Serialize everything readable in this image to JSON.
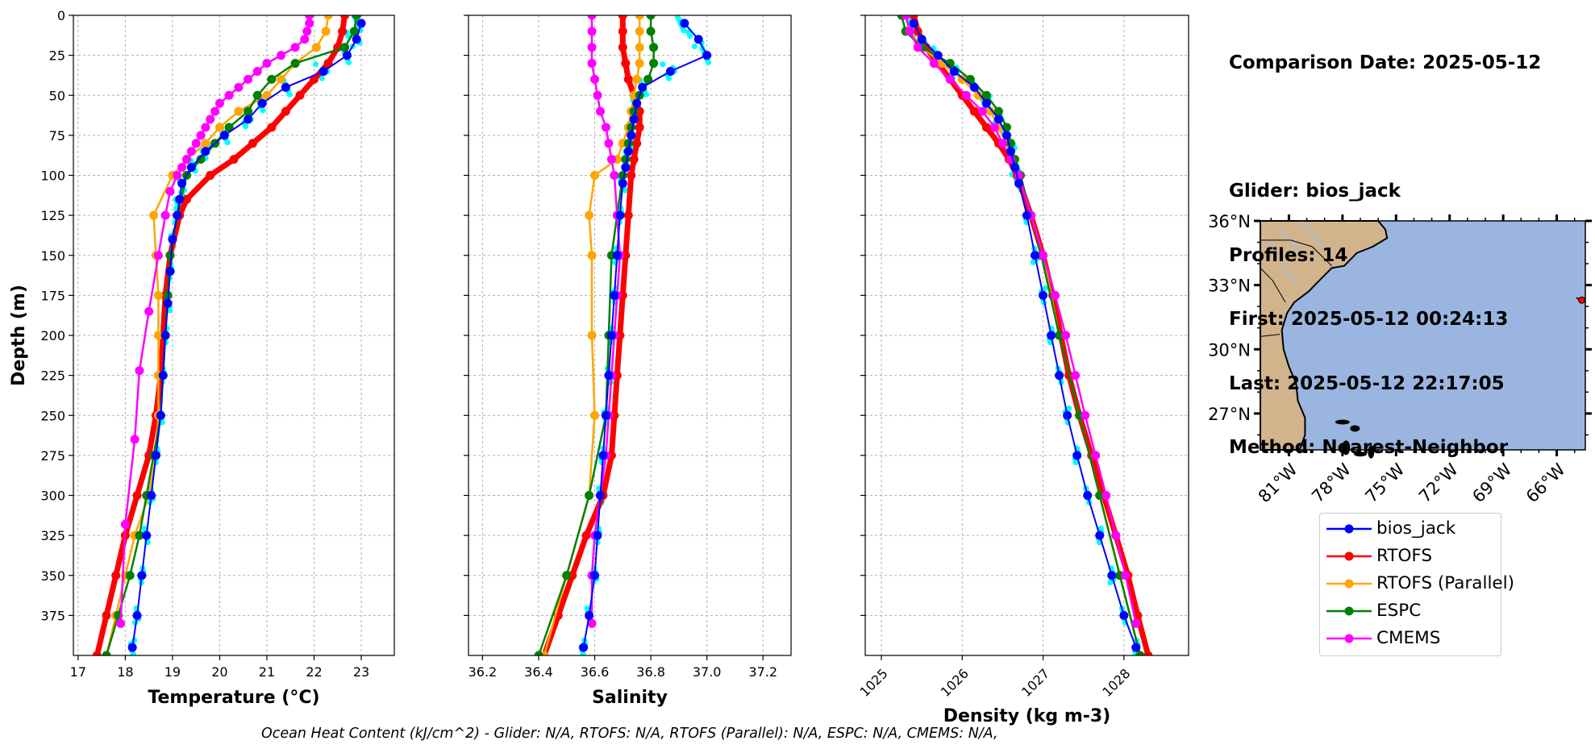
{
  "info": {
    "comparison_date": "Comparison Date: 2025-05-12",
    "glider": "Glider: bios_jack",
    "profiles": "Profiles: 14",
    "first": "First: 2025-05-12 00:24:13",
    "last": "Last: 2025-05-12 22:17:05",
    "method": "Method: Nearest-Neighbor"
  },
  "footer": "Ocean Heat Content (kJ/cm^2) - Glider: N/A,  RTOFS: N/A,  RTOFS (Parallel): N/A,  ESPC: N/A,  CMEMS: N/A,",
  "legend": [
    {
      "label": "bios_jack",
      "color": "#0000ff"
    },
    {
      "label": "RTOFS",
      "color": "#ff0000"
    },
    {
      "label": "RTOFS (Parallel)",
      "color": "#ffa500"
    },
    {
      "label": "ESPC",
      "color": "#008000"
    },
    {
      "label": "CMEMS",
      "color": "#ff00ff"
    }
  ],
  "colors": {
    "glider": "#0000ff",
    "glider_raw": "#00ffff",
    "rtofs": "#ff0000",
    "rtofs_parallel": "#ffa500",
    "espc": "#008000",
    "cmems": "#ff00ff",
    "ocean": "#9ab6e0",
    "land": "#d2b48c",
    "grid": "#b0b0b0"
  },
  "map": {
    "lat_ticks": [
      "36°N",
      "33°N",
      "30°N",
      "27°N"
    ],
    "lon_ticks": [
      "81°W",
      "78°W",
      "75°W",
      "72°W",
      "69°W",
      "66°W"
    ]
  },
  "chart_data": [
    {
      "type": "line",
      "panel": "temperature",
      "xlabel": "Temperature (°C)",
      "ylabel": "Depth (m)",
      "xlim": [
        16.9,
        23.7
      ],
      "ylim": [
        400,
        0
      ],
      "xticks": [
        17,
        18,
        19,
        20,
        21,
        22,
        23
      ],
      "yticks": [
        0,
        25,
        50,
        75,
        100,
        125,
        150,
        175,
        200,
        225,
        250,
        275,
        300,
        325,
        350,
        375
      ],
      "grid": true,
      "series": [
        {
          "name": "bios_jack",
          "depth": [
            5,
            15,
            25,
            35,
            45,
            55,
            65,
            75,
            85,
            95,
            105,
            115,
            125,
            140,
            160,
            180,
            200,
            225,
            250,
            275,
            300,
            325,
            350,
            375,
            395
          ],
          "values": [
            23.0,
            22.9,
            22.7,
            22.2,
            21.4,
            20.9,
            20.6,
            20.1,
            19.7,
            19.4,
            19.2,
            19.15,
            19.1,
            19.0,
            18.95,
            18.9,
            18.85,
            18.8,
            18.75,
            18.65,
            18.55,
            18.45,
            18.35,
            18.25,
            18.15
          ]
        },
        {
          "name": "RTOFS",
          "depth": [
            0,
            10,
            20,
            30,
            40,
            50,
            60,
            70,
            80,
            90,
            100,
            115,
            125,
            150,
            175,
            200,
            225,
            250,
            275,
            300,
            325,
            350,
            375,
            400
          ],
          "values": [
            22.65,
            22.6,
            22.5,
            22.3,
            22.0,
            21.7,
            21.4,
            21.1,
            20.7,
            20.3,
            19.8,
            19.3,
            19.15,
            18.95,
            18.85,
            18.8,
            18.75,
            18.65,
            18.5,
            18.25,
            18.0,
            17.8,
            17.6,
            17.4
          ]
        },
        {
          "name": "RTOFS (Parallel)",
          "depth": [
            0,
            10,
            20,
            30,
            40,
            50,
            60,
            70,
            80,
            90,
            100,
            125,
            150,
            175,
            200,
            225,
            250,
            275,
            300,
            325,
            350,
            375,
            400
          ],
          "values": [
            22.3,
            22.25,
            22.05,
            21.6,
            21.3,
            21.0,
            20.4,
            20.0,
            19.7,
            19.3,
            19.0,
            18.6,
            18.65,
            18.7,
            18.7,
            18.7,
            18.7,
            18.65,
            18.5,
            18.2,
            18.0,
            17.8,
            17.6
          ]
        },
        {
          "name": "ESPC",
          "depth": [
            0,
            10,
            20,
            30,
            40,
            50,
            60,
            70,
            80,
            90,
            100,
            125,
            150,
            175,
            200,
            225,
            250,
            275,
            300,
            325,
            350,
            375,
            400
          ],
          "values": [
            22.9,
            22.85,
            22.65,
            21.6,
            21.1,
            20.8,
            20.6,
            20.2,
            19.9,
            19.6,
            19.3,
            19.1,
            18.95,
            18.9,
            18.85,
            18.8,
            18.75,
            18.6,
            18.45,
            18.3,
            18.1,
            17.85,
            17.6
          ]
        },
        {
          "name": "CMEMS",
          "depth": [
            0,
            5,
            10,
            15,
            20,
            25,
            30,
            35,
            40,
            45,
            50,
            55,
            60,
            65,
            70,
            75,
            80,
            85,
            90,
            95,
            100,
            110,
            125,
            150,
            185,
            222,
            265,
            318,
            380
          ],
          "values": [
            21.9,
            21.9,
            21.85,
            21.8,
            21.6,
            21.3,
            21.0,
            20.8,
            20.6,
            20.4,
            20.2,
            20.0,
            19.9,
            19.8,
            19.7,
            19.6,
            19.5,
            19.4,
            19.3,
            19.2,
            19.1,
            18.95,
            18.85,
            18.7,
            18.5,
            18.3,
            18.2,
            18.0,
            17.9
          ]
        }
      ]
    },
    {
      "type": "line",
      "panel": "salinity",
      "xlabel": "Salinity",
      "xlim": [
        36.15,
        37.3
      ],
      "ylim": [
        400,
        0
      ],
      "xticks": [
        36.2,
        36.4,
        36.6,
        36.8,
        37.0,
        37.2
      ],
      "grid": true,
      "series": [
        {
          "name": "bios_jack",
          "depth": [
            5,
            15,
            25,
            35,
            45,
            55,
            65,
            75,
            85,
            95,
            105,
            125,
            150,
            175,
            200,
            225,
            250,
            275,
            300,
            325,
            350,
            375,
            395
          ],
          "values": [
            36.92,
            36.97,
            37.0,
            36.87,
            36.77,
            36.75,
            36.74,
            36.73,
            36.72,
            36.71,
            36.7,
            36.69,
            36.68,
            36.67,
            36.66,
            36.65,
            36.64,
            36.63,
            36.62,
            36.61,
            36.6,
            36.58,
            36.56
          ]
        },
        {
          "name": "RTOFS",
          "depth": [
            0,
            10,
            20,
            30,
            40,
            50,
            60,
            70,
            80,
            90,
            100,
            125,
            150,
            175,
            200,
            225,
            250,
            275,
            300,
            325,
            350,
            375,
            400
          ],
          "values": [
            36.7,
            36.7,
            36.7,
            36.71,
            36.72,
            36.74,
            36.76,
            36.76,
            36.75,
            36.74,
            36.73,
            36.72,
            36.71,
            36.7,
            36.69,
            36.68,
            36.67,
            36.66,
            36.63,
            36.57,
            36.52,
            36.47,
            36.42
          ]
        },
        {
          "name": "RTOFS (Parallel)",
          "depth": [
            0,
            10,
            20,
            30,
            40,
            50,
            60,
            70,
            80,
            90,
            100,
            125,
            150,
            200,
            250,
            300,
            350,
            400
          ],
          "values": [
            36.76,
            36.76,
            36.76,
            36.76,
            36.75,
            36.74,
            36.73,
            36.72,
            36.7,
            36.68,
            36.6,
            36.58,
            36.59,
            36.59,
            36.6,
            36.58,
            36.5,
            36.42
          ]
        },
        {
          "name": "ESPC",
          "depth": [
            0,
            10,
            20,
            30,
            40,
            50,
            60,
            70,
            80,
            90,
            100,
            125,
            150,
            200,
            250,
            300,
            350,
            400
          ],
          "values": [
            36.8,
            36.8,
            36.81,
            36.81,
            36.79,
            36.76,
            36.74,
            36.73,
            36.72,
            36.71,
            36.7,
            36.68,
            36.66,
            36.65,
            36.64,
            36.58,
            36.5,
            36.4
          ]
        },
        {
          "name": "CMEMS",
          "depth": [
            0,
            10,
            20,
            30,
            40,
            50,
            60,
            70,
            80,
            90,
            100,
            125,
            150,
            175,
            200,
            225,
            250,
            275,
            300,
            325,
            350,
            380
          ],
          "values": [
            36.59,
            36.59,
            36.59,
            36.59,
            36.6,
            36.61,
            36.62,
            36.64,
            36.65,
            36.66,
            36.67,
            36.68,
            36.69,
            36.68,
            36.67,
            36.66,
            36.65,
            36.64,
            36.62,
            36.6,
            36.59,
            36.59
          ]
        }
      ]
    },
    {
      "type": "line",
      "panel": "density",
      "xlabel": "Density (kg m-3)",
      "xlim": [
        1024.8,
        1028.8
      ],
      "ylim": [
        400,
        0
      ],
      "xticks": [
        1025,
        1026,
        1027,
        1028
      ],
      "grid": true,
      "series": [
        {
          "name": "bios_jack",
          "depth": [
            5,
            15,
            25,
            35,
            45,
            55,
            65,
            75,
            85,
            95,
            105,
            125,
            150,
            175,
            200,
            225,
            250,
            275,
            300,
            325,
            350,
            375,
            395
          ],
          "values": [
            1025.4,
            1025.5,
            1025.7,
            1025.9,
            1026.15,
            1026.3,
            1026.45,
            1026.55,
            1026.6,
            1026.65,
            1026.7,
            1026.8,
            1026.9,
            1027.0,
            1027.1,
            1027.2,
            1027.3,
            1027.42,
            1027.55,
            1027.7,
            1027.85,
            1028.0,
            1028.15
          ]
        },
        {
          "name": "RTOFS",
          "depth": [
            0,
            10,
            20,
            30,
            40,
            50,
            60,
            70,
            80,
            90,
            100,
            125,
            150,
            175,
            200,
            225,
            250,
            275,
            300,
            325,
            350,
            375,
            400
          ],
          "values": [
            1025.4,
            1025.45,
            1025.55,
            1025.7,
            1025.85,
            1026.0,
            1026.15,
            1026.3,
            1026.45,
            1026.58,
            1026.68,
            1026.85,
            1027.0,
            1027.12,
            1027.22,
            1027.32,
            1027.45,
            1027.6,
            1027.75,
            1027.9,
            1028.05,
            1028.17,
            1028.3
          ]
        },
        {
          "name": "RTOFS (Parallel)",
          "depth": [
            0,
            10,
            20,
            30,
            40,
            50,
            60,
            70,
            80,
            90,
            100,
            125,
            150,
            200,
            250,
            300,
            350,
            400
          ],
          "values": [
            1025.3,
            1025.35,
            1025.5,
            1025.75,
            1026.0,
            1026.2,
            1026.35,
            1026.45,
            1026.55,
            1026.65,
            1026.72,
            1026.85,
            1027.0,
            1027.2,
            1027.45,
            1027.7,
            1027.95,
            1028.2
          ]
        },
        {
          "name": "ESPC",
          "depth": [
            0,
            10,
            20,
            30,
            40,
            50,
            60,
            70,
            80,
            90,
            100,
            125,
            150,
            200,
            250,
            300,
            350,
            400
          ],
          "values": [
            1025.25,
            1025.3,
            1025.5,
            1025.85,
            1026.1,
            1026.3,
            1026.45,
            1026.55,
            1026.6,
            1026.65,
            1026.72,
            1026.85,
            1026.98,
            1027.2,
            1027.45,
            1027.7,
            1027.95,
            1028.2
          ]
        },
        {
          "name": "CMEMS",
          "depth": [
            0,
            10,
            20,
            30,
            40,
            50,
            60,
            70,
            80,
            90,
            100,
            125,
            150,
            175,
            200,
            225,
            250,
            275,
            300,
            325,
            350,
            380
          ],
          "values": [
            1025.3,
            1025.35,
            1025.45,
            1025.65,
            1025.85,
            1026.05,
            1026.25,
            1026.4,
            1026.5,
            1026.6,
            1026.7,
            1026.85,
            1027.0,
            1027.15,
            1027.28,
            1027.4,
            1027.52,
            1027.65,
            1027.78,
            1027.9,
            1028.02,
            1028.15
          ]
        }
      ]
    }
  ]
}
